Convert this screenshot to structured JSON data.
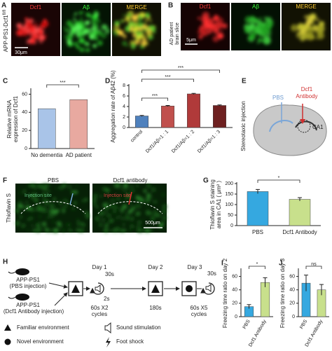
{
  "panel_labels": [
    "A",
    "B",
    "C",
    "D",
    "E",
    "F",
    "G",
    "H",
    "I",
    "J"
  ],
  "panel_a": {
    "side_label": "APP-PS1-Dcf1",
    "side_label_sup": "fl/fl",
    "images": [
      "Dcf1",
      "Aβ",
      "MERGE"
    ],
    "scale": "30μm"
  },
  "panel_b": {
    "side_label": [
      "AD patient",
      "brain slice"
    ],
    "images": [
      "Dcf1",
      "Aβ",
      "MERGE"
    ],
    "scale": "5μm"
  },
  "panel_e": {
    "side_label": "Stereotaxic injection",
    "pbs": "PBS",
    "antibody": [
      "Dcf1",
      "Antibody"
    ],
    "region": "CA1"
  },
  "panel_f": {
    "side_label": "Thioflavin S",
    "images": [
      "PBS",
      "Dcf1 antibody"
    ],
    "marker": [
      "Injection site",
      "Injection site"
    ],
    "scale": "500μm"
  },
  "panel_h": {
    "groups": [
      [
        "APP-PS1",
        "(PBS injection)"
      ],
      [
        "APP-PS1",
        "(Dcf1 Antibody injection)"
      ]
    ],
    "days": [
      "Day 1",
      "Day 2",
      "Day 3"
    ],
    "day1": {
      "pre": "30s",
      "gap": "2s",
      "cycles": [
        "60s X2",
        "cycles"
      ]
    },
    "day2": "180s",
    "day3": {
      "post": "30s",
      "cycles": [
        "60s X5",
        "cycles"
      ]
    },
    "legend": [
      "Familiar environment",
      "Sound stimulation",
      "Novel environment",
      "Foot shock"
    ]
  },
  "chart_data": [
    {
      "type": "bar",
      "ylabel": [
        "Relative mRNA",
        "expression of Dcf1"
      ],
      "categories": [
        "No dementia",
        "AD patient"
      ],
      "values": [
        44,
        54
      ],
      "colors": [
        "#a9c4e8",
        "#e8a9a0"
      ],
      "ylim": [
        0,
        65
      ],
      "yticks": [
        0,
        20,
        40,
        60
      ],
      "annotations": [
        "***"
      ]
    },
    {
      "type": "bar",
      "ylabel": "Aggregation rate of Aβ42 (%)",
      "categories": [
        "control",
        "Dcf1/Aβ=1 : 1",
        "Dcf1/Aβ=1 : 2",
        "Dcf1/Aβ=1 : 3"
      ],
      "values": [
        2.2,
        4.1,
        6.4,
        4.2
      ],
      "errors": [
        0.1,
        0.1,
        0.1,
        0.1
      ],
      "colors": [
        "#4f81bd",
        "#c0504d",
        "#b03a3a",
        "#6e2020"
      ],
      "ylim": [
        0,
        8
      ],
      "yticks": [
        0,
        2,
        4,
        6,
        8
      ],
      "annotations": [
        "***",
        "***",
        "***"
      ]
    },
    {
      "type": "bar",
      "ylabel": [
        "Thioflavin S staining",
        "area in CA1 ( μm² )"
      ],
      "categories": [
        "PBS",
        "Dcf1 Antibody"
      ],
      "values": [
        162,
        125
      ],
      "errors": [
        10,
        8
      ],
      "colors": [
        "#35a8e0",
        "#c8e08c"
      ],
      "ylim": [
        0,
        200
      ],
      "yticks": [
        0,
        50,
        100,
        150,
        200
      ],
      "annotations": [
        "*"
      ]
    },
    {
      "type": "bar",
      "ylabel": "Freezing time ratio on day 2",
      "categories": [
        "PBS",
        "Dcf1 Antibody"
      ],
      "values": [
        15,
        51
      ],
      "errors": [
        3,
        7
      ],
      "colors": [
        "#35a8e0",
        "#c8e08c"
      ],
      "ylim": [
        0,
        70
      ],
      "yticks": [
        0,
        20,
        40,
        60
      ],
      "annotations": [
        "*"
      ]
    },
    {
      "type": "bar",
      "ylabel": "Freezing time ratio on day 3",
      "categories": [
        "PBS",
        "Dcf1 Antibody"
      ],
      "values": [
        50,
        40
      ],
      "errors": [
        12,
        8
      ],
      "colors": [
        "#35a8e0",
        "#c8e08c"
      ],
      "ylim": [
        0,
        70
      ],
      "yticks": [
        0,
        20,
        40,
        60
      ],
      "annotations": [
        "ns"
      ]
    }
  ]
}
